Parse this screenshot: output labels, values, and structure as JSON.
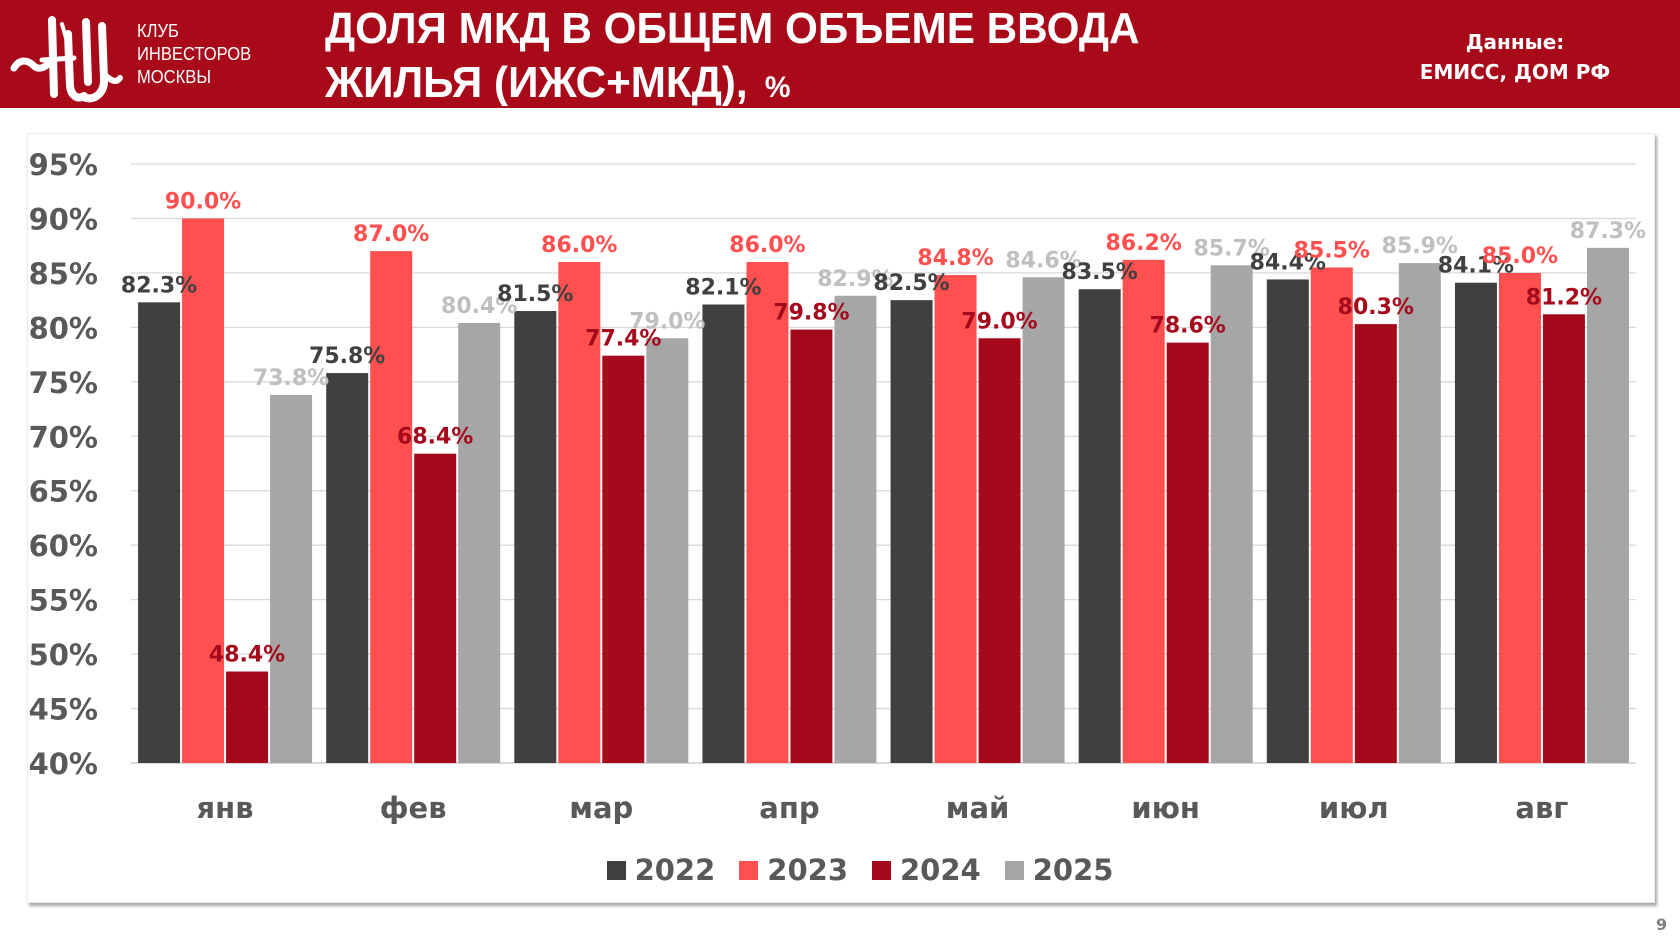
{
  "header": {
    "club_name_lines": [
      "КЛУБ",
      "ИНВЕСТОРОВ",
      "МОСКВЫ"
    ],
    "logo": "club-monogram-logo",
    "title_line1": "ДОЛЯ МКД В ОБЩЕМ ОБЪЕМЕ ВВОДА",
    "title_line2": "ЖИЛЬЯ (ИЖС+МКД),",
    "title_unit": "%",
    "source_label": "Данные:",
    "source_value": "ЕМИСС, ДОМ РФ"
  },
  "page_number": "9",
  "colors": {
    "header": "#A80A1A",
    "s2022": "#404040",
    "s2023": "#FF4F4F",
    "s2024": "#A50A1C",
    "s2025": "#A6A6A6",
    "label2025": "#BFBFBF",
    "axis_text": "#595959",
    "grid": "#D9D9D9"
  },
  "chart_data": {
    "type": "bar",
    "title": "ДОЛЯ МКД В ОБЩЕМ ОБЪЕМЕ ВВОДА ЖИЛЬЯ (ИЖС+МКД), %",
    "xlabel": "",
    "ylabel": "",
    "categories": [
      "янв",
      "фев",
      "мар",
      "апр",
      "май",
      "июн",
      "июл",
      "авг"
    ],
    "ylim": [
      40,
      95
    ],
    "yticks": [
      40,
      45,
      50,
      55,
      60,
      65,
      70,
      75,
      80,
      85,
      90,
      95
    ],
    "ytick_labels": [
      "40%",
      "45%",
      "50%",
      "55%",
      "60%",
      "65%",
      "70%",
      "75%",
      "80%",
      "85%",
      "90%",
      "95%"
    ],
    "grid": true,
    "legend_position": "bottom",
    "series": [
      {
        "name": "2022",
        "values": [
          82.3,
          75.8,
          81.5,
          82.1,
          82.5,
          83.5,
          84.4,
          84.1
        ],
        "labels": [
          "82.3%",
          "75.8%",
          "81.5%",
          "82.1%",
          "82.5%",
          "83.5%",
          "84.4%",
          "84.1%"
        ]
      },
      {
        "name": "2023",
        "values": [
          90.0,
          87.0,
          86.0,
          86.0,
          84.8,
          86.2,
          85.5,
          85.0
        ],
        "labels": [
          "90.0%",
          "87.0%",
          "86.0%",
          "86.0%",
          "84.8%",
          "86.2%",
          "85.5%",
          "85.0%"
        ]
      },
      {
        "name": "2024",
        "values": [
          48.4,
          68.4,
          77.4,
          79.8,
          79.0,
          78.6,
          80.3,
          81.2
        ],
        "labels": [
          "48.4%",
          "68.4%",
          "77.4%",
          "79.8%",
          "79.0%",
          "78.6%",
          "80.3%",
          "81.2%"
        ]
      },
      {
        "name": "2025",
        "values": [
          73.8,
          80.4,
          79.0,
          82.9,
          84.6,
          85.7,
          85.9,
          87.3
        ],
        "labels": [
          "73.8%",
          "80.4%",
          "79.0%",
          "82.9%",
          "84.6%",
          "85.7%",
          "85.9%",
          "87.3%"
        ]
      }
    ]
  }
}
